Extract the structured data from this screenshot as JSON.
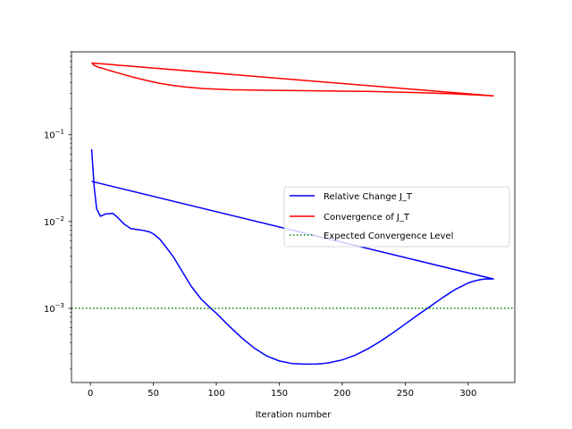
{
  "chart_data": {
    "type": "line",
    "xlabel": "Iteration number",
    "ylabel": "",
    "y_scale": "log",
    "xlim": [
      -15,
      337
    ],
    "ylim": [
      0.00014,
      0.9
    ],
    "x_ticks": [
      0,
      50,
      100,
      150,
      200,
      250,
      300
    ],
    "x_tick_labels": [
      "0",
      "50",
      "100",
      "150",
      "200",
      "250",
      "300"
    ],
    "y_ticks": [
      0.001,
      0.01,
      0.1
    ],
    "y_tick_labels": [
      "10",
      "10",
      "10"
    ],
    "y_tick_exponents": [
      "−3",
      "−2",
      "−1"
    ],
    "legend_position": "center-right",
    "grid": false,
    "series": [
      {
        "name": "Relative Change J_T",
        "color": "#0000ff",
        "style": "solid",
        "x": [
          1,
          3,
          5,
          8,
          12,
          18,
          22,
          27,
          32,
          37,
          42,
          47,
          50,
          55,
          60,
          66,
          72,
          80,
          88,
          95,
          100,
          110,
          120,
          130,
          140,
          150,
          160,
          170,
          175,
          180,
          185,
          190,
          200,
          210,
          220,
          230,
          240,
          250,
          260,
          270,
          280,
          290,
          300,
          305,
          310,
          315,
          320,
          1
        ],
        "y": [
          0.068,
          0.025,
          0.014,
          0.0115,
          0.0122,
          0.0124,
          0.011,
          0.0093,
          0.0083,
          0.0081,
          0.0079,
          0.0076,
          0.0072,
          0.0063,
          0.0051,
          0.0039,
          0.0028,
          0.0018,
          0.00128,
          0.00102,
          0.00088,
          0.00063,
          0.00046,
          0.00035,
          0.000283,
          0.000248,
          0.000232,
          0.000228,
          0.000228,
          0.000229,
          0.000232,
          0.000237,
          0.000255,
          0.000288,
          0.00034,
          0.000415,
          0.00052,
          0.00066,
          0.00084,
          0.00106,
          0.00134,
          0.00166,
          0.00196,
          0.00207,
          0.00215,
          0.00219,
          0.00218,
          0.029
        ]
      },
      {
        "name": "Convergence of J_T",
        "color": "#ff0000",
        "style": "solid",
        "x": [
          1,
          3,
          6,
          10,
          15,
          25,
          35,
          45,
          55,
          65,
          75,
          90,
          110,
          140,
          180,
          220,
          260,
          290,
          310,
          320,
          1
        ],
        "y": [
          0.67,
          0.63,
          0.6,
          0.58,
          0.55,
          0.5,
          0.455,
          0.42,
          0.39,
          0.37,
          0.355,
          0.34,
          0.33,
          0.325,
          0.32,
          0.315,
          0.305,
          0.295,
          0.285,
          0.28,
          0.67
        ]
      },
      {
        "name": "Expected Convergence Level",
        "color": "#008000",
        "style": "dotted",
        "x": [
          -15,
          337
        ],
        "y": [
          0.001,
          0.001
        ]
      }
    ]
  }
}
